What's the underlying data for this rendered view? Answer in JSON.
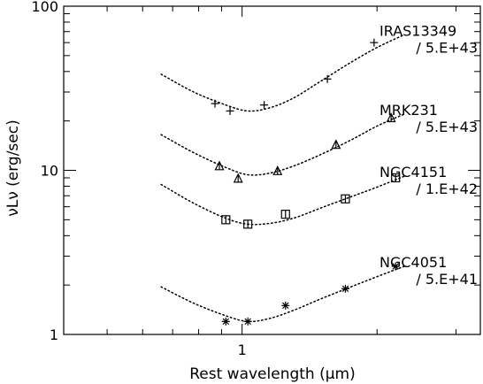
{
  "chart_data": {
    "type": "scatter",
    "xlabel": "Rest wavelength (μm)",
    "ylabel": "νLν (erg/sec)",
    "x_scale": "log",
    "y_scale": "log",
    "xlim": [
      0.4,
      3.4
    ],
    "ylim": [
      1,
      100
    ],
    "x_ticks": [
      {
        "value": 1,
        "label": "1"
      }
    ],
    "y_ticks": [
      {
        "value": 1,
        "label": "1"
      },
      {
        "value": 10,
        "label": "10"
      },
      {
        "value": 100,
        "label": "100"
      }
    ],
    "grid": false,
    "series": [
      {
        "name": "IRAS13349",
        "scale": "/ 5.E+43",
        "marker": "plus",
        "points": [
          [
            0.87,
            25.5
          ],
          [
            0.94,
            23.0
          ],
          [
            1.12,
            25.0
          ],
          [
            1.55,
            36.0
          ],
          [
            1.97,
            60.0
          ]
        ],
        "fit": [
          [
            0.66,
            38.5
          ],
          [
            0.78,
            30.0
          ],
          [
            0.92,
            25.0
          ],
          [
            1.03,
            23.0
          ],
          [
            1.15,
            24.0
          ],
          [
            1.3,
            27.5
          ],
          [
            1.5,
            35.0
          ],
          [
            1.75,
            45.5
          ],
          [
            2.0,
            56.0
          ],
          [
            2.3,
            67.0
          ]
        ]
      },
      {
        "name": "MRK231",
        "scale": "/ 5.E+43",
        "marker": "triangle",
        "points": [
          [
            0.89,
            10.6
          ],
          [
            0.98,
            8.9
          ],
          [
            1.2,
            9.9
          ],
          [
            1.62,
            14.3
          ],
          [
            2.15,
            20.8
          ]
        ],
        "fit": [
          [
            0.66,
            16.5
          ],
          [
            0.78,
            12.8
          ],
          [
            0.92,
            10.4
          ],
          [
            1.03,
            9.4
          ],
          [
            1.15,
            9.6
          ],
          [
            1.3,
            10.6
          ],
          [
            1.5,
            12.5
          ],
          [
            1.75,
            15.3
          ],
          [
            2.0,
            18.6
          ],
          [
            2.3,
            22.0
          ]
        ]
      },
      {
        "name": "NGC4151",
        "scale": "/ 1.E+42",
        "marker": "square",
        "points": [
          [
            0.92,
            5.0
          ],
          [
            1.03,
            4.7
          ],
          [
            1.25,
            5.4
          ],
          [
            1.7,
            6.7
          ],
          [
            2.2,
            9.0
          ]
        ],
        "fit": [
          [
            0.66,
            8.2
          ],
          [
            0.78,
            6.3
          ],
          [
            0.92,
            5.1
          ],
          [
            1.03,
            4.7
          ],
          [
            1.15,
            4.75
          ],
          [
            1.3,
            5.1
          ],
          [
            1.5,
            5.9
          ],
          [
            1.75,
            6.9
          ],
          [
            2.0,
            7.9
          ],
          [
            2.3,
            9.2
          ]
        ]
      },
      {
        "name": "NGC4051",
        "scale": "/ 5.E+41",
        "marker": "asterisk",
        "points": [
          [
            0.92,
            1.2
          ],
          [
            1.03,
            1.2
          ],
          [
            1.25,
            1.5
          ],
          [
            1.7,
            1.9
          ],
          [
            2.2,
            2.6
          ]
        ],
        "fit": [
          [
            0.66,
            1.95
          ],
          [
            0.78,
            1.55
          ],
          [
            0.92,
            1.3
          ],
          [
            1.03,
            1.2
          ],
          [
            1.15,
            1.25
          ],
          [
            1.3,
            1.4
          ],
          [
            1.5,
            1.65
          ],
          [
            1.75,
            1.95
          ],
          [
            2.0,
            2.25
          ],
          [
            2.3,
            2.6
          ]
        ]
      }
    ]
  }
}
